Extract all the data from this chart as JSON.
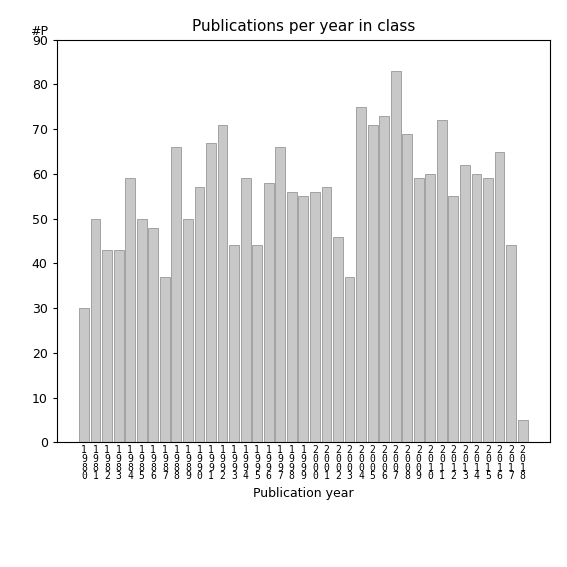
{
  "title": "Publications per year in class",
  "xlabel": "Publication year",
  "ylabel": "#P",
  "bar_color": "#c8c8c8",
  "bar_edge_color": "#888888",
  "background_color": "#ffffff",
  "ylim": [
    0,
    90
  ],
  "yticks": [
    0,
    10,
    20,
    30,
    40,
    50,
    60,
    70,
    80,
    90
  ],
  "years": [
    1980,
    1981,
    1982,
    1983,
    1984,
    1985,
    1986,
    1987,
    1988,
    1989,
    1990,
    1991,
    1992,
    1993,
    1994,
    1995,
    1996,
    1997,
    1998,
    1999,
    2000,
    2001,
    2002,
    2003,
    2004,
    2005,
    2006,
    2007,
    2008,
    2009,
    2010,
    2011,
    2012,
    2013,
    2014,
    2015,
    2016,
    2017,
    2018
  ],
  "values": [
    30,
    50,
    43,
    43,
    59,
    50,
    48,
    37,
    66,
    50,
    57,
    67,
    71,
    44,
    59,
    44,
    58,
    66,
    56,
    55,
    56,
    57,
    46,
    37,
    75,
    71,
    73,
    83,
    69,
    59,
    60,
    72,
    55,
    62,
    60,
    59,
    65,
    44,
    5
  ]
}
